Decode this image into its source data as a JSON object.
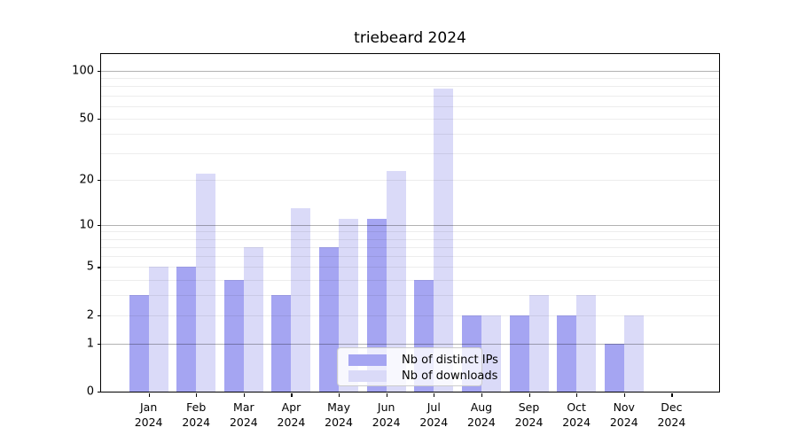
{
  "chart_data": {
    "type": "bar",
    "title": "triebeard 2024",
    "categories": [
      "Jan 2024",
      "Feb 2024",
      "Mar 2024",
      "Apr 2024",
      "May 2024",
      "Jun 2024",
      "Jul 2024",
      "Aug 2024",
      "Sep 2024",
      "Oct 2024",
      "Nov 2024",
      "Dec 2024"
    ],
    "series": [
      {
        "name": "Nb of distinct IPs",
        "color": "#a5a5f2",
        "values": [
          3,
          5,
          4,
          3,
          7,
          11,
          4,
          2,
          2,
          2,
          1,
          0
        ]
      },
      {
        "name": "Nb of downloads",
        "color": "#dadaf8",
        "values": [
          5,
          22,
          7,
          13,
          11,
          23,
          77,
          2,
          3,
          3,
          2,
          0
        ]
      }
    ],
    "xlabel": "",
    "ylabel": "",
    "yscale": "log1p",
    "yticks": [
      0,
      1,
      2,
      5,
      10,
      20,
      50,
      100
    ],
    "ylim": [
      0,
      128
    ],
    "grid": {
      "major": [
        1,
        10,
        100
      ],
      "minor": [
        2,
        3,
        4,
        5,
        6,
        7,
        8,
        9,
        20,
        30,
        40,
        50,
        60,
        70,
        80,
        90
      ],
      "major_color": "rgba(0,0,0,0.30)",
      "minor_color": "rgba(0,0,0,0.07)"
    },
    "legend": {
      "position": "lower-center"
    }
  }
}
